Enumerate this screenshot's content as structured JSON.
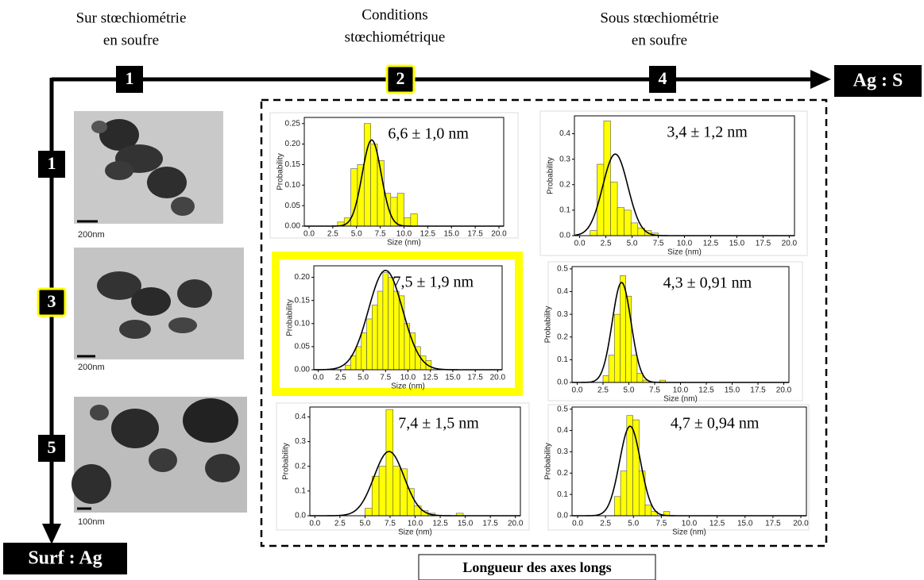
{
  "diagram": {
    "columns": [
      {
        "title_lines": [
          "Sur stœchiométrie",
          "en soufre"
        ],
        "number": "1"
      },
      {
        "title_lines": [
          "Conditions",
          "stœchiométrique"
        ],
        "number": "2"
      },
      {
        "title_lines": [
          "Sous stœchiométrie",
          "en soufre"
        ],
        "number": "4"
      }
    ],
    "rows": [
      {
        "number": "1",
        "scale": "200nm"
      },
      {
        "number": "3",
        "scale": "200nm"
      },
      {
        "number": "5",
        "scale": "100nm"
      }
    ],
    "x_axis_label": "Ag : S",
    "y_axis_label": "Surf : Ag",
    "footer": "Longueur des axes longs"
  },
  "chart_data": [
    {
      "type": "histogram",
      "annotation": "6,6 ± 1,0 nm",
      "xlabel": "Size (nm)",
      "ylabel": "Probability",
      "color": "#ffff00",
      "bins": [
        3.0,
        3.7,
        4.4,
        5.1,
        5.8,
        6.5,
        7.2,
        7.9,
        8.6,
        9.3,
        10.0,
        10.7,
        11.4
      ],
      "values": [
        0.01,
        0.02,
        0.14,
        0.15,
        0.25,
        0.2,
        0.16,
        0.08,
        0.07,
        0.08,
        0.02,
        0.03
      ],
      "fit": {
        "mean": 6.6,
        "sd": 1.0,
        "peak": 0.21,
        "color": "#000000"
      },
      "xlim": [
        -0.5,
        20.5
      ],
      "ylim": [
        0,
        0.265
      ],
      "xticks": [
        {
          "value": 0,
          "label": "0.0"
        },
        {
          "value": 2.5,
          "label": "2.5"
        },
        {
          "value": 5,
          "label": "5.0"
        },
        {
          "value": 7.5,
          "label": "7.5"
        },
        {
          "value": 10,
          "label": "10.0"
        },
        {
          "value": 12.5,
          "label": "12.5"
        },
        {
          "value": 15,
          "label": "15.0"
        },
        {
          "value": 17.5,
          "label": "17.5"
        },
        {
          "value": 20,
          "label": "20.0"
        }
      ],
      "yticks": [
        {
          "value": 0,
          "label": "0.00"
        },
        0.05,
        {
          "value": 0.1,
          "label": "0.10"
        },
        0.15,
        {
          "value": 0.2,
          "label": "0.20"
        },
        0.25
      ]
    },
    {
      "type": "histogram",
      "annotation": "3,4 ± 1,2 nm",
      "xlabel": "Size (nm)",
      "ylabel": "Probability",
      "color": "#ffff00",
      "bins": [
        1.0,
        1.65,
        2.3,
        2.95,
        3.6,
        4.25,
        4.9,
        5.55,
        6.2,
        6.85,
        7.5
      ],
      "values": [
        0.02,
        0.28,
        0.45,
        0.21,
        0.11,
        0.1,
        0.05,
        0.03,
        0.02,
        0.01
      ],
      "fit": {
        "mean": 3.4,
        "sd": 1.2,
        "peak": 0.32,
        "color": "#000000"
      },
      "xlim": [
        -0.5,
        20.5
      ],
      "ylim": [
        0,
        0.47
      ],
      "xticks": [
        {
          "value": 0,
          "label": "0.0"
        },
        {
          "value": 2.5,
          "label": "2.5"
        },
        {
          "value": 5,
          "label": "5.0"
        },
        {
          "value": 7.5,
          "label": "7.5"
        },
        {
          "value": 10,
          "label": "10.0"
        },
        {
          "value": 12.5,
          "label": "12.5"
        },
        {
          "value": 15,
          "label": "15.0"
        },
        {
          "value": 17.5,
          "label": "17.5"
        },
        {
          "value": 20,
          "label": "20.0"
        }
      ],
      "yticks": [
        {
          "value": 0,
          "label": "0.0"
        },
        0.1,
        0.2,
        0.3,
        0.4
      ]
    },
    {
      "type": "histogram",
      "annotation": "7,5 ± 1,9 nm",
      "xlabel": "Size (nm)",
      "ylabel": "Probability",
      "color": "#ffff00",
      "bins": [
        3.0,
        3.6,
        4.2,
        4.8,
        5.4,
        6.0,
        6.6,
        7.2,
        7.8,
        8.4,
        9.0,
        9.6,
        10.2,
        10.8,
        11.4,
        12.0,
        12.6
      ],
      "values": [
        0.01,
        0.03,
        0.05,
        0.08,
        0.11,
        0.14,
        0.17,
        0.21,
        0.2,
        0.17,
        0.16,
        0.1,
        0.08,
        0.05,
        0.03,
        0.02
      ],
      "fit": {
        "mean": 7.5,
        "sd": 1.9,
        "peak": 0.215,
        "color": "#000000"
      },
      "xlim": [
        -0.5,
        20.5
      ],
      "ylim": [
        0,
        0.225
      ],
      "xticks": [
        {
          "value": 0,
          "label": "0.0"
        },
        {
          "value": 2.5,
          "label": "2.5"
        },
        {
          "value": 5,
          "label": "5.0"
        },
        {
          "value": 7.5,
          "label": "7.5"
        },
        {
          "value": 10,
          "label": "10.0"
        },
        {
          "value": 12.5,
          "label": "12.5"
        },
        {
          "value": 15,
          "label": "15.0"
        },
        {
          "value": 17.5,
          "label": "17.5"
        },
        {
          "value": 20,
          "label": "20.0"
        }
      ],
      "yticks": [
        {
          "value": 0,
          "label": "0.00"
        },
        0.05,
        {
          "value": 0.1,
          "label": "0.10"
        },
        0.15,
        {
          "value": 0.2,
          "label": "0.20"
        }
      ]
    },
    {
      "type": "histogram",
      "annotation": "4,3 ± 0,91 nm",
      "xlabel": "Size (nm)",
      "ylabel": "Probability",
      "color": "#ffff00",
      "bins": [
        2.5,
        3.05,
        3.6,
        4.15,
        4.7,
        5.25,
        5.8,
        6.35,
        6.9,
        7.45,
        8.0,
        8.55
      ],
      "values": [
        0.03,
        0.12,
        0.3,
        0.47,
        0.38,
        0.12,
        0.04,
        0.01,
        0,
        0,
        0.01
      ],
      "fit": {
        "mean": 4.3,
        "sd": 0.91,
        "peak": 0.44,
        "color": "#000000"
      },
      "xlim": [
        -0.5,
        20.5
      ],
      "ylim": [
        0,
        0.51
      ],
      "xticks": [
        {
          "value": 0,
          "label": "0.0"
        },
        {
          "value": 2.5,
          "label": "2.5"
        },
        {
          "value": 5,
          "label": "5.0"
        },
        {
          "value": 7.5,
          "label": "7.5"
        },
        {
          "value": 10,
          "label": "10.0"
        },
        {
          "value": 12.5,
          "label": "12.5"
        },
        {
          "value": 15,
          "label": "15.0"
        },
        {
          "value": 17.5,
          "label": "17.5"
        },
        {
          "value": 20,
          "label": "20.0"
        }
      ],
      "yticks": [
        {
          "value": 0,
          "label": "0.0"
        },
        0.1,
        0.2,
        0.3,
        0.4,
        0.5
      ]
    },
    {
      "type": "histogram",
      "annotation": "7,4 ± 1,5 nm",
      "xlabel": "Size (nm)",
      "ylabel": "Probability",
      "color": "#ffff00",
      "bins": [
        5.0,
        5.7,
        6.4,
        7.1,
        7.8,
        8.5,
        9.2,
        9.9,
        10.6,
        11.3,
        12.0,
        12.7,
        13.4,
        14.1,
        14.8
      ],
      "values": [
        0.03,
        0.16,
        0.2,
        0.43,
        0.2,
        0.19,
        0.11,
        0.04,
        0.02,
        0.01,
        0,
        0,
        0,
        0.01
      ],
      "fit": {
        "mean": 7.4,
        "sd": 1.5,
        "peak": 0.26,
        "color": "#000000"
      },
      "xlim": [
        -0.5,
        20.5
      ],
      "ylim": [
        0,
        0.44
      ],
      "xticks": [
        {
          "value": 0,
          "label": "0.0"
        },
        {
          "value": 2.5,
          "label": "2.5"
        },
        {
          "value": 5,
          "label": "5.0"
        },
        {
          "value": 7.5,
          "label": "7.5"
        },
        {
          "value": 10,
          "label": "10.0"
        },
        {
          "value": 12.5,
          "label": "12.5"
        },
        {
          "value": 15,
          "label": "15.0"
        },
        {
          "value": 17.5,
          "label": "17.5"
        },
        {
          "value": 20,
          "label": "20.0"
        }
      ],
      "yticks": [
        {
          "value": 0,
          "label": "0.0"
        },
        0.1,
        0.2,
        0.3,
        0.4
      ]
    },
    {
      "type": "histogram",
      "annotation": "4,7 ± 0,94 nm",
      "xlabel": "Size (nm)",
      "ylabel": "Probability",
      "color": "#ffff00",
      "bins": [
        3.3,
        3.85,
        4.4,
        4.95,
        5.5,
        6.05,
        6.6,
        7.15,
        7.7,
        8.25
      ],
      "values": [
        0.09,
        0.21,
        0.47,
        0.45,
        0.21,
        0.05,
        0.02,
        0,
        0.02
      ],
      "fit": {
        "mean": 4.7,
        "sd": 0.94,
        "peak": 0.42,
        "color": "#000000"
      },
      "xlim": [
        -0.5,
        20.5
      ],
      "ylim": [
        0,
        0.51
      ],
      "xticks": [
        {
          "value": 0,
          "label": "0.0"
        },
        {
          "value": 2.5,
          "label": "2.5"
        },
        {
          "value": 5,
          "label": "5.0"
        },
        {
          "value": 7.5,
          "label": "7.5"
        },
        {
          "value": 10,
          "label": "10.0"
        },
        {
          "value": 12.5,
          "label": "12.5"
        },
        {
          "value": 15,
          "label": "15.0"
        },
        {
          "value": 17.5,
          "label": "17.5"
        },
        {
          "value": 20,
          "label": "20.0"
        }
      ],
      "yticks": [
        {
          "value": 0,
          "label": "0.0"
        },
        0.1,
        0.2,
        0.3,
        0.4,
        0.5
      ]
    }
  ]
}
